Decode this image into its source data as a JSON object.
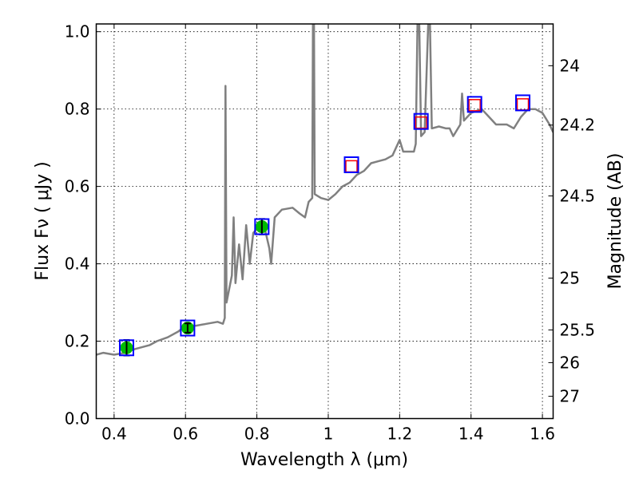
{
  "chart_data": {
    "type": "line",
    "xlabel": "Wavelength  λ (μm)",
    "ylabel": "Flux  Fν  ( μJy )",
    "ylabel_right": "Magnitude (AB)",
    "xlim": [
      0.35,
      1.63
    ],
    "ylim": [
      0.0,
      1.02
    ],
    "grid": true,
    "x_ticks": [
      0.4,
      0.6,
      0.8,
      1.0,
      1.2,
      1.4,
      1.6
    ],
    "x_tick_labels": [
      "0.4",
      "0.6",
      "0.8",
      "1",
      "1.2",
      "1.4",
      "1.6"
    ],
    "y_ticks": [
      0.0,
      0.2,
      0.4,
      0.6,
      0.8,
      1.0
    ],
    "y_tick_labels": [
      "0.0",
      "0.2",
      "0.4",
      "0.6",
      "0.8",
      "1.0"
    ],
    "right_ticks": [
      24,
      24.2,
      24.5,
      25,
      25.5,
      26,
      27
    ],
    "right_tick_labels": [
      "24",
      "24.2",
      "24.5",
      "25",
      "25.5",
      "26",
      "27"
    ],
    "colors": {
      "spectrum": "#808080",
      "observed": "#00bb00",
      "model_box": "#0000ff",
      "upper": "#ff0000"
    },
    "spectrum": {
      "x": [
        0.35,
        0.37,
        0.4,
        0.43,
        0.46,
        0.48,
        0.5,
        0.52,
        0.55,
        0.58,
        0.6,
        0.63,
        0.66,
        0.69,
        0.705,
        0.71,
        0.712,
        0.715,
        0.73,
        0.735,
        0.74,
        0.75,
        0.76,
        0.77,
        0.78,
        0.79,
        0.8,
        0.82,
        0.835,
        0.84,
        0.85,
        0.87,
        0.9,
        0.92,
        0.935,
        0.945,
        0.955,
        0.957,
        0.96,
        0.962,
        0.98,
        1.0,
        1.02,
        1.04,
        1.06,
        1.08,
        1.1,
        1.12,
        1.14,
        1.16,
        1.18,
        1.2,
        1.21,
        1.24,
        1.245,
        1.25,
        1.255,
        1.26,
        1.27,
        1.28,
        1.285,
        1.29,
        1.31,
        1.33,
        1.34,
        1.35,
        1.37,
        1.375,
        1.38,
        1.4,
        1.43,
        1.45,
        1.47,
        1.5,
        1.52,
        1.54,
        1.56,
        1.58,
        1.6,
        1.62,
        1.63
      ],
      "y": [
        0.165,
        0.17,
        0.165,
        0.17,
        0.18,
        0.185,
        0.19,
        0.2,
        0.21,
        0.225,
        0.24,
        0.24,
        0.245,
        0.25,
        0.245,
        0.26,
        0.86,
        0.3,
        0.37,
        0.52,
        0.35,
        0.45,
        0.36,
        0.5,
        0.4,
        0.48,
        0.49,
        0.5,
        0.44,
        0.4,
        0.52,
        0.54,
        0.545,
        0.53,
        0.52,
        0.56,
        0.57,
        1.02,
        1.02,
        0.58,
        0.57,
        0.565,
        0.58,
        0.6,
        0.61,
        0.63,
        0.64,
        0.66,
        0.665,
        0.67,
        0.68,
        0.72,
        0.69,
        0.69,
        0.71,
        1.02,
        1.02,
        0.73,
        0.74,
        1.02,
        1.02,
        0.75,
        0.755,
        0.75,
        0.75,
        0.73,
        0.76,
        0.84,
        0.77,
        0.79,
        0.8,
        0.78,
        0.76,
        0.76,
        0.75,
        0.78,
        0.8,
        0.8,
        0.79,
        0.76,
        0.74
      ]
    },
    "observed": [
      {
        "x": 0.435,
        "y": 0.183,
        "err": 0.02
      },
      {
        "x": 0.606,
        "y": 0.234,
        "err": 0.012
      },
      {
        "x": 0.814,
        "y": 0.496,
        "err": 0.02
      }
    ],
    "model_boxes": [
      {
        "x": 0.435,
        "y": 0.183
      },
      {
        "x": 0.606,
        "y": 0.234
      },
      {
        "x": 0.814,
        "y": 0.496
      },
      {
        "x": 1.065,
        "y": 0.656
      },
      {
        "x": 1.26,
        "y": 0.768
      },
      {
        "x": 1.41,
        "y": 0.812
      },
      {
        "x": 1.545,
        "y": 0.816
      }
    ],
    "upper_limits": [
      {
        "x": 1.065,
        "y": 0.652
      },
      {
        "x": 1.26,
        "y": 0.765
      },
      {
        "x": 1.41,
        "y": 0.81
      },
      {
        "x": 1.545,
        "y": 0.812
      }
    ]
  }
}
